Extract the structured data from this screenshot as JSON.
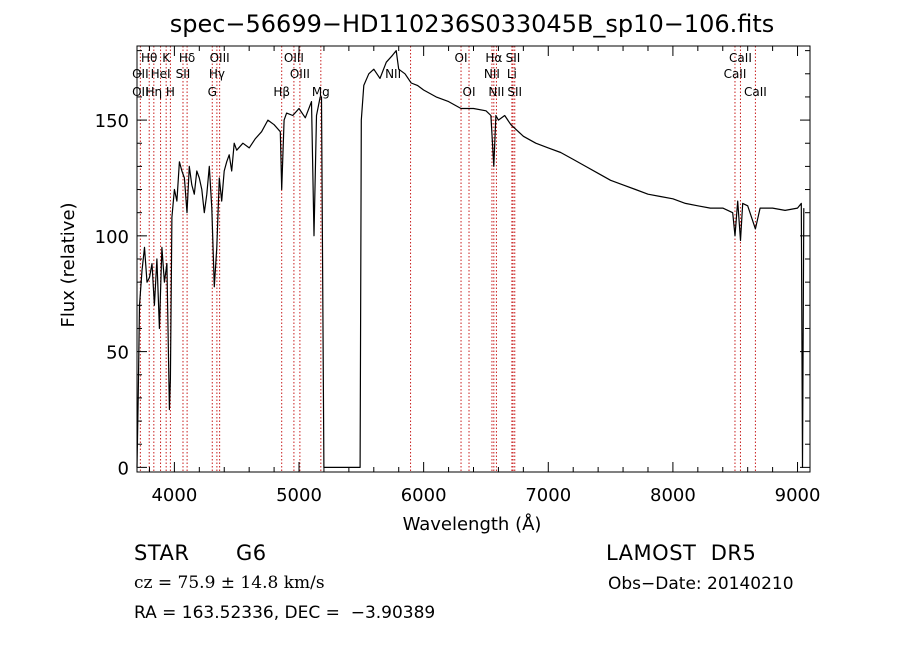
{
  "chart_data": {
    "type": "line",
    "title": "spec−56699−HD110236S033045B_sp10−106.fits",
    "xlabel": "Wavelength (Å)",
    "ylabel": "Flux (relative)",
    "xlim": [
      3700,
      9100
    ],
    "ylim": [
      -2,
      182
    ],
    "xticks": [
      4000,
      5000,
      6000,
      7000,
      8000,
      9000
    ],
    "yticks": [
      0,
      50,
      100,
      150
    ],
    "grid": false,
    "series": [
      {
        "x": [
          3700,
          3710,
          3720,
          3740,
          3760,
          3780,
          3800,
          3820,
          3840,
          3860,
          3880,
          3900,
          3920,
          3940,
          3960,
          3968,
          3980,
          4000,
          4020,
          4040,
          4060,
          4080,
          4101,
          4120,
          4140,
          4160,
          4180,
          4200,
          4220,
          4240,
          4260,
          4280,
          4300,
          4320,
          4340,
          4360,
          4380,
          4400,
          4420,
          4440,
          4460,
          4480,
          4500,
          4550,
          4600,
          4650,
          4700,
          4750,
          4800,
          4850,
          4861,
          4880,
          4900,
          4950,
          5000,
          5050,
          5100,
          5120,
          5140,
          5170,
          5180,
          5200,
          5300,
          5400,
          5490,
          5500,
          5520,
          5560,
          5600,
          5650,
          5700,
          5750,
          5780,
          5800,
          5850,
          5900,
          5950,
          6000,
          6100,
          6200,
          6300,
          6400,
          6500,
          6540,
          6563,
          6580,
          6600,
          6650,
          6700,
          6800,
          6900,
          7000,
          7100,
          7200,
          7300,
          7400,
          7500,
          7600,
          7700,
          7800,
          7900,
          8000,
          8100,
          8200,
          8300,
          8400,
          8480,
          8498,
          8520,
          8542,
          8560,
          8600,
          8662,
          8700,
          8800,
          8900,
          9000,
          9030,
          9040,
          9050
        ],
        "values": [
          0,
          30,
          70,
          85,
          95,
          80,
          82,
          88,
          70,
          90,
          60,
          95,
          80,
          88,
          25,
          38,
          108,
          120,
          115,
          132,
          128,
          125,
          110,
          130,
          122,
          118,
          128,
          125,
          120,
          110,
          118,
          130,
          112,
          78,
          95,
          125,
          115,
          128,
          132,
          135,
          128,
          140,
          137,
          140,
          138,
          142,
          145,
          150,
          148,
          145,
          120,
          150,
          153,
          152,
          155,
          151,
          158,
          100,
          152,
          160,
          160,
          0,
          0,
          0,
          0,
          150,
          165,
          170,
          172,
          168,
          175,
          178,
          180,
          172,
          170,
          166,
          165,
          163,
          160,
          158,
          155,
          155,
          154,
          152,
          130,
          152,
          150,
          152,
          148,
          143,
          140,
          138,
          136,
          133,
          130,
          127,
          124,
          122,
          120,
          118,
          117,
          116,
          114,
          113,
          112,
          112,
          110,
          100,
          115,
          98,
          114,
          113,
          103,
          112,
          112,
          111,
          112,
          114,
          0,
          112
        ]
      }
    ],
    "line_labels": [
      {
        "text": "Hθ",
        "x": 3798,
        "row": 1
      },
      {
        "text": "K",
        "x": 3934,
        "row": 1
      },
      {
        "text": "Hδ",
        "x": 4102,
        "row": 1
      },
      {
        "text": "OIII",
        "x": 4363,
        "row": 1
      },
      {
        "text": "OIII",
        "x": 4959,
        "row": 1
      },
      {
        "text": "OI",
        "x": 6300,
        "row": 1
      },
      {
        "text": "Hα",
        "x": 6563,
        "row": 1
      },
      {
        "text": "SII",
        "x": 6717,
        "row": 1
      },
      {
        "text": "CaII",
        "x": 8542,
        "row": 1
      },
      {
        "text": "OII",
        "x": 3727,
        "row": 2
      },
      {
        "text": "HeI",
        "x": 3889,
        "row": 2
      },
      {
        "text": "SII",
        "x": 4069,
        "row": 2
      },
      {
        "text": "Hγ",
        "x": 4341,
        "row": 2
      },
      {
        "text": "OIII",
        "x": 5007,
        "row": 2
      },
      {
        "text": "NII",
        "x": 5755,
        "row": 2
      },
      {
        "text": "NII",
        "x": 6548,
        "row": 2
      },
      {
        "text": "Li",
        "x": 6708,
        "row": 2
      },
      {
        "text": "CaII",
        "x": 8498,
        "row": 2
      },
      {
        "text": "OII",
        "x": 3727,
        "row": 3
      },
      {
        "text": "Hη",
        "x": 3835,
        "row": 3
      },
      {
        "text": "H",
        "x": 3968,
        "row": 3
      },
      {
        "text": "G",
        "x": 4304,
        "row": 3
      },
      {
        "text": "Hβ",
        "x": 4861,
        "row": 3
      },
      {
        "text": "Mg",
        "x": 5175,
        "row": 3
      },
      {
        "text": "OI",
        "x": 6364,
        "row": 3
      },
      {
        "text": "NII",
        "x": 6584,
        "row": 3
      },
      {
        "text": "SII",
        "x": 6731,
        "row": 3
      },
      {
        "text": "CaII",
        "x": 8662,
        "row": 3
      }
    ],
    "line_markers": [
      3727,
      3798,
      3835,
      3889,
      3934,
      3968,
      4069,
      4102,
      4304,
      4341,
      4363,
      4861,
      4959,
      5007,
      5175,
      5895,
      6300,
      6364,
      6548,
      6563,
      6584,
      6708,
      6717,
      6731,
      8498,
      8542,
      8662
    ],
    "colors": {
      "spectrum": "#000000",
      "marker": "#c81e1e",
      "axis": "#000000"
    }
  },
  "info": {
    "object_class": "STAR",
    "subclass": "G6",
    "survey": "LAMOST  DR5",
    "redshift": "cz = 75.9 ± 14.8 km/s",
    "obs_date": "Obs−Date: 20140210",
    "coords": "RA = 163.52336, DEC =  −3.90389"
  }
}
